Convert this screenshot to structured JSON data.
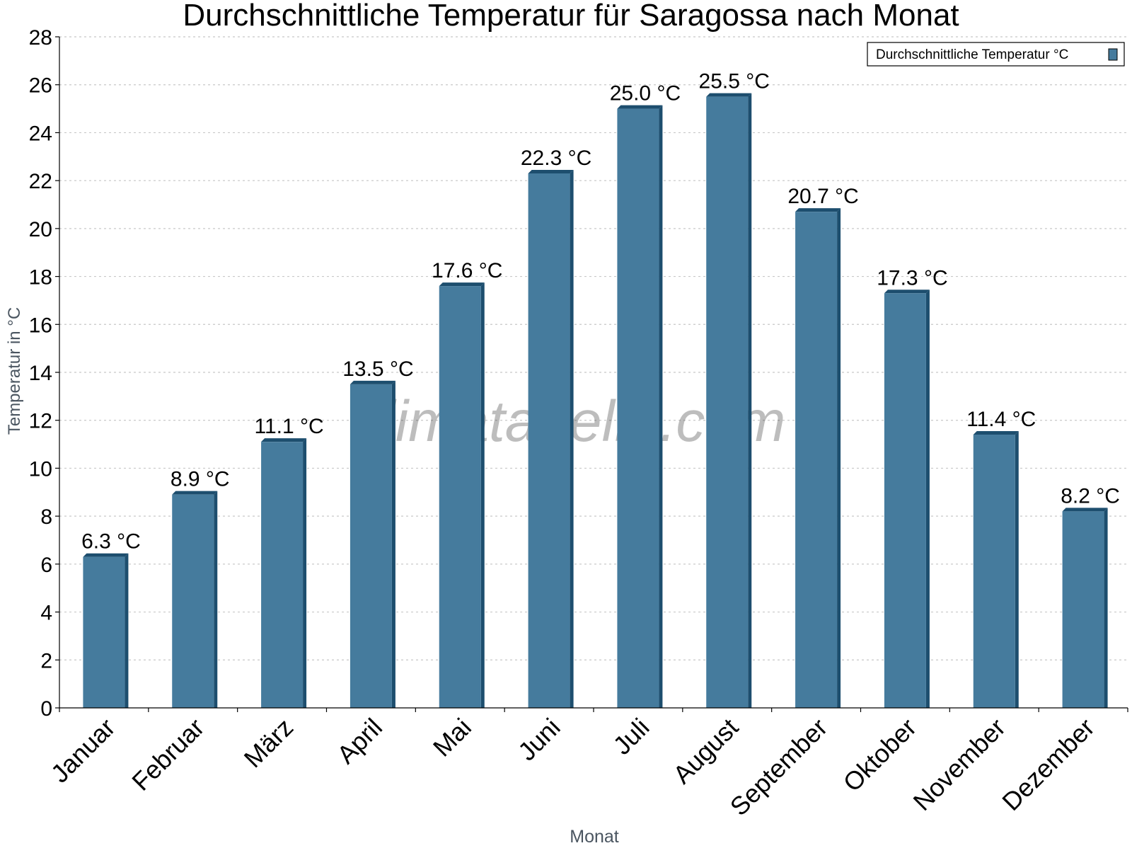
{
  "chart_data": {
    "type": "bar",
    "title": "Durchschnittliche Temperatur für Saragossa nach Monat",
    "xlabel": "Monat",
    "ylabel": "Temperatur in °C",
    "categories": [
      "Januar",
      "Februar",
      "März",
      "April",
      "Mai",
      "Juni",
      "Juli",
      "August",
      "September",
      "Oktober",
      "November",
      "Dezember"
    ],
    "series": [
      {
        "name": "Durchschnittliche Temperatur °C",
        "values": [
          6.3,
          8.9,
          11.1,
          13.5,
          17.6,
          22.3,
          25.0,
          25.5,
          20.7,
          17.3,
          11.4,
          8.2
        ],
        "data_labels": [
          "6.3 °C",
          "8.9 °C",
          "11.1 °C",
          "13.5 °C",
          "17.6 °C",
          "22.3 °C",
          "25.0 °C",
          "25.5 °C",
          "20.7 °C",
          "17.3 °C",
          "11.4 °C",
          "8.2 °C"
        ],
        "color": "#457b9d",
        "shade_color": "#1d4e6e"
      }
    ],
    "ylim": [
      0,
      28
    ],
    "yticks": [
      0,
      2,
      4,
      6,
      8,
      10,
      12,
      14,
      16,
      18,
      20,
      22,
      24,
      26,
      28
    ],
    "grid": true,
    "legend_position": "top-right",
    "watermark": "klimatabelle.com"
  }
}
